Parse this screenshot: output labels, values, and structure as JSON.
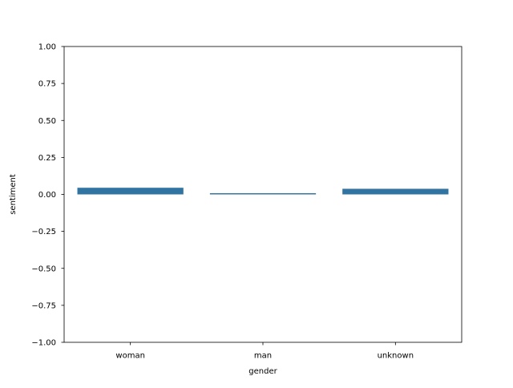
{
  "chart_data": {
    "type": "bar",
    "categories": [
      "woman",
      "man",
      "unknown"
    ],
    "values": [
      0.045,
      0.008,
      0.038
    ],
    "xlabel": "gender",
    "ylabel": "sentiment",
    "ylim": [
      -1.0,
      1.0
    ],
    "yticks": [
      1.0,
      0.75,
      0.5,
      0.25,
      0.0,
      -0.25,
      -0.5,
      -0.75,
      -1.0
    ],
    "ytick_labels": [
      "1.00",
      "0.75",
      "0.50",
      "0.25",
      "0.00",
      "−0.25",
      "−0.50",
      "−0.75",
      "−1.00"
    ],
    "grid": false,
    "legend": "none",
    "bar_color": "#3274a1"
  }
}
